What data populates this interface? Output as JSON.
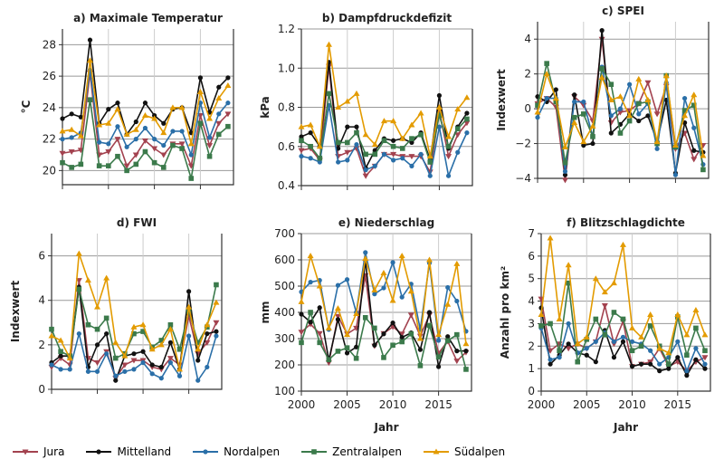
{
  "series_colors": {
    "Jura": "#a3424f",
    "Mittelland": "#111111",
    "Nordalpen": "#2a6fa8",
    "Zentralalpen": "#3b7a4b",
    "Südalpen": "#e39b00"
  },
  "legend": [
    "Jura",
    "Mittelland",
    "Nordalpen",
    "Zentralalpen",
    "Südalpen"
  ],
  "chart_data": [
    {
      "type": "line",
      "title": "a) Maximale Temperatur",
      "ylabel": "°C",
      "xlabel": "",
      "ylim": [
        19.1,
        29
      ],
      "yticks": [
        "20",
        "22",
        "24",
        "26",
        "28"
      ],
      "xticks": [],
      "x": [
        2000,
        2001,
        2002,
        2003,
        2004,
        2005,
        2006,
        2007,
        2008,
        2009,
        2010,
        2011,
        2012,
        2013,
        2014,
        2015,
        2016,
        2017,
        2018
      ],
      "series": [
        {
          "name": "Jura",
          "values": [
            21.1,
            21.2,
            21.3,
            26.2,
            21.0,
            21.2,
            22.0,
            20.3,
            21.0,
            21.9,
            21.4,
            21.0,
            21.7,
            21.7,
            20.3,
            23.5,
            21.6,
            23.0,
            23.6
          ]
        },
        {
          "name": "Mittelland",
          "values": [
            23.3,
            23.6,
            23.4,
            28.3,
            23.0,
            23.9,
            24.3,
            22.3,
            23.1,
            24.3,
            23.5,
            23.0,
            23.9,
            24.0,
            22.4,
            25.9,
            23.7,
            25.3,
            25.9
          ]
        },
        {
          "name": "Nordalpen",
          "values": [
            22.0,
            22.1,
            22.4,
            26.4,
            21.8,
            21.7,
            22.8,
            21.5,
            22.0,
            22.7,
            22.0,
            21.6,
            22.5,
            22.5,
            21.0,
            24.3,
            22.1,
            23.6,
            24.3
          ]
        },
        {
          "name": "Zentralalpen",
          "values": [
            20.5,
            20.2,
            20.4,
            24.5,
            20.3,
            20.3,
            20.9,
            20.0,
            20.4,
            21.2,
            20.5,
            20.2,
            21.6,
            21.4,
            19.5,
            23.0,
            20.9,
            22.3,
            22.8
          ]
        },
        {
          "name": "Südalpen",
          "values": [
            22.5,
            22.6,
            22.2,
            27.0,
            22.9,
            23.0,
            23.9,
            22.3,
            22.6,
            23.5,
            23.3,
            22.4,
            24.0,
            24.0,
            21.7,
            25.0,
            23.3,
            24.6,
            25.4
          ]
        }
      ]
    },
    {
      "type": "line",
      "title": "b) Dampfdruckdefizit",
      "ylabel": "kPa",
      "xlabel": "",
      "ylim": [
        0.4,
        1.2
      ],
      "yticks": [
        "0.4",
        "0.6",
        "0.8",
        "1.0",
        "1.2"
      ],
      "xticks": [],
      "x": [
        2000,
        2001,
        2002,
        2003,
        2004,
        2005,
        2006,
        2007,
        2008,
        2009,
        2010,
        2011,
        2012,
        2013,
        2014,
        2015,
        2016,
        2017,
        2018
      ],
      "series": [
        {
          "name": "Jura",
          "values": [
            0.58,
            0.59,
            0.53,
            1.01,
            0.55,
            0.57,
            0.59,
            0.45,
            0.5,
            0.56,
            0.56,
            0.55,
            0.55,
            0.55,
            0.47,
            0.78,
            0.55,
            0.66,
            0.72
          ]
        },
        {
          "name": "Mittelland",
          "values": [
            0.65,
            0.67,
            0.6,
            1.03,
            0.59,
            0.7,
            0.7,
            0.49,
            0.58,
            0.64,
            0.63,
            0.64,
            0.62,
            0.67,
            0.53,
            0.86,
            0.59,
            0.7,
            0.77
          ]
        },
        {
          "name": "Nordalpen",
          "values": [
            0.55,
            0.54,
            0.52,
            0.81,
            0.52,
            0.53,
            0.61,
            0.48,
            0.5,
            0.56,
            0.53,
            0.54,
            0.5,
            0.56,
            0.45,
            0.7,
            0.45,
            0.57,
            0.67
          ]
        },
        {
          "name": "Zentralalpen",
          "values": [
            0.63,
            0.6,
            0.54,
            0.87,
            0.62,
            0.62,
            0.67,
            0.56,
            0.56,
            0.63,
            0.6,
            0.59,
            0.64,
            0.66,
            0.52,
            0.76,
            0.6,
            0.69,
            0.74
          ]
        },
        {
          "name": "Südalpen",
          "values": [
            0.7,
            0.71,
            0.6,
            1.12,
            0.8,
            0.83,
            0.87,
            0.66,
            0.61,
            0.73,
            0.73,
            0.64,
            0.71,
            0.77,
            0.55,
            0.8,
            0.65,
            0.79,
            0.85
          ]
        }
      ]
    },
    {
      "type": "line",
      "title": "c) SPEI",
      "ylabel": "Indexwert",
      "xlabel": "",
      "ylim": [
        -4,
        5
      ],
      "yticks": [
        "−4",
        "−2",
        "0",
        "2",
        "4"
      ],
      "xticks": [],
      "x": [
        2000,
        2001,
        2002,
        2003,
        2004,
        2005,
        2006,
        2007,
        2008,
        2009,
        2010,
        2011,
        2012,
        2013,
        2014,
        2015,
        2016,
        2017,
        2018
      ],
      "series": [
        {
          "name": "Jura",
          "values": [
            0.3,
            0.6,
            0.1,
            -4.1,
            0.7,
            0.2,
            -0.7,
            4.0,
            -0.8,
            -0.2,
            -0.1,
            0.3,
            1.5,
            -0.3,
            1.3,
            -2.3,
            -1.4,
            -2.9,
            -2.1
          ]
        },
        {
          "name": "Mittelland",
          "values": [
            0.7,
            0.4,
            1.1,
            -3.8,
            0.8,
            -2.1,
            -2.0,
            4.5,
            -1.4,
            -0.9,
            -0.3,
            -0.7,
            -0.4,
            -1.9,
            0.5,
            -3.7,
            -0.8,
            -2.4,
            -2.5
          ]
        },
        {
          "name": "Nordalpen",
          "values": [
            -0.5,
            0.6,
            0.6,
            -3.6,
            0.4,
            0.4,
            -1.6,
            2.4,
            -0.4,
            0.0,
            1.4,
            -0.3,
            0.3,
            -2.3,
            1.5,
            -3.8,
            0.6,
            -1.1,
            -3.2
          ]
        },
        {
          "name": "Zentralalpen",
          "values": [
            0.2,
            2.6,
            0.4,
            -3.1,
            -0.5,
            -0.3,
            -1.6,
            2.3,
            1.4,
            -1.4,
            -0.7,
            0.3,
            0.4,
            -2.0,
            1.9,
            -2.2,
            -0.1,
            0.2,
            -3.5
          ]
        },
        {
          "name": "Südalpen",
          "values": [
            -0.2,
            2.0,
            0.6,
            -2.2,
            -0.8,
            -1.9,
            -1.0,
            1.8,
            0.5,
            0.7,
            -0.4,
            1.7,
            0.5,
            -1.9,
            1.9,
            -2.1,
            -0.4,
            0.8,
            -2.7
          ]
        }
      ]
    },
    {
      "type": "line",
      "title": "d) FWI",
      "ylabel": "Indexwert",
      "xlabel": "",
      "ylim": [
        0,
        7
      ],
      "yticks": [
        "0",
        "2",
        "4",
        "6"
      ],
      "xticks": [],
      "x": [
        2000,
        2001,
        2002,
        2003,
        2004,
        2005,
        2006,
        2007,
        2008,
        2009,
        2010,
        2011,
        2012,
        2013,
        2014,
        2015,
        2016,
        2017,
        2018
      ],
      "series": [
        {
          "name": "Jura",
          "values": [
            1.0,
            1.4,
            1.1,
            4.9,
            1.4,
            1.2,
            1.7,
            0.5,
            1.1,
            1.3,
            1.3,
            1.0,
            0.9,
            1.4,
            1.1,
            3.3,
            1.6,
            2.1,
            3.0
          ]
        },
        {
          "name": "Mittelland",
          "values": [
            1.2,
            1.5,
            1.5,
            4.6,
            1.0,
            2.0,
            2.5,
            0.4,
            1.5,
            1.6,
            1.7,
            1.1,
            1.0,
            2.1,
            0.9,
            4.4,
            1.3,
            2.5,
            2.6
          ]
        },
        {
          "name": "Nordalpen",
          "values": [
            1.1,
            0.9,
            0.9,
            2.5,
            0.8,
            0.8,
            1.6,
            0.6,
            0.8,
            0.9,
            1.2,
            0.7,
            0.5,
            1.2,
            0.6,
            2.4,
            0.4,
            1.0,
            2.4
          ]
        },
        {
          "name": "Zentralalpen",
          "values": [
            2.7,
            1.7,
            1.5,
            4.5,
            2.9,
            2.7,
            3.2,
            1.4,
            1.6,
            2.5,
            2.6,
            1.9,
            2.2,
            2.9,
            1.8,
            3.5,
            2.1,
            2.8,
            4.7
          ]
        },
        {
          "name": "Südalpen",
          "values": [
            2.4,
            2.2,
            1.4,
            6.1,
            4.9,
            3.7,
            5.0,
            2.1,
            1.5,
            2.8,
            2.9,
            1.8,
            2.0,
            2.7,
            0.9,
            3.7,
            1.8,
            2.9,
            3.9
          ]
        }
      ]
    },
    {
      "type": "line",
      "title": "e) Niederschlag",
      "ylabel": "mm",
      "xlabel": "Jahr",
      "ylim": [
        100,
        700
      ],
      "yticks": [
        "100",
        "200",
        "300",
        "400",
        "500",
        "600",
        "700"
      ],
      "xticks": [
        "2000",
        "2005",
        "2010",
        "2015"
      ],
      "x": [
        2000,
        2001,
        2002,
        2003,
        2004,
        2005,
        2006,
        2007,
        2008,
        2009,
        2010,
        2011,
        2012,
        2013,
        2014,
        2015,
        2016,
        2017,
        2018
      ],
      "series": [
        {
          "name": "Jura",
          "values": [
            325,
            355,
            320,
            208,
            385,
            318,
            340,
            540,
            272,
            320,
            345,
            318,
            390,
            310,
            390,
            245,
            290,
            215,
            248
          ]
        },
        {
          "name": "Mittelland",
          "values": [
            393,
            363,
            418,
            218,
            373,
            245,
            268,
            598,
            275,
            318,
            360,
            305,
            322,
            258,
            400,
            193,
            308,
            253,
            253
          ]
        },
        {
          "name": "Nordalpen",
          "values": [
            478,
            515,
            522,
            335,
            503,
            525,
            400,
            628,
            470,
            493,
            590,
            458,
            508,
            335,
            588,
            293,
            495,
            443,
            328
          ]
        },
        {
          "name": "Zentralalpen",
          "values": [
            285,
            400,
            285,
            220,
            252,
            265,
            225,
            380,
            340,
            228,
            275,
            288,
            318,
            197,
            350,
            230,
            292,
            315,
            183
          ]
        },
        {
          "name": "Südalpen",
          "values": [
            440,
            615,
            500,
            340,
            415,
            315,
            395,
            605,
            485,
            550,
            445,
            615,
            480,
            300,
            600,
            315,
            430,
            585,
            280
          ]
        }
      ]
    },
    {
      "type": "line",
      "title": "f) Blitzschlagdichte",
      "ylabel": "Anzahl pro km²",
      "xlabel": "Jahr",
      "ylim": [
        0,
        7
      ],
      "yticks": [
        "0",
        "1",
        "2",
        "3",
        "4",
        "5",
        "6",
        "7"
      ],
      "xticks": [
        "2000",
        "2005",
        "2010",
        "2015"
      ],
      "x": [
        2000,
        2001,
        2002,
        2003,
        2004,
        2005,
        2006,
        2007,
        2008,
        2009,
        2010,
        2011,
        2012,
        2013,
        2014,
        2015,
        2016,
        2017,
        2018
      ],
      "series": [
        {
          "name": "Jura",
          "values": [
            4.1,
            1.8,
            2.1,
            1.9,
            2.1,
            1.9,
            2.2,
            3.8,
            2.1,
            3.1,
            1.1,
            1.2,
            1.3,
            1.9,
            1.1,
            1.3,
            0.9,
            1.3,
            1.5
          ]
        },
        {
          "name": "Mittelland",
          "values": [
            3.7,
            1.2,
            1.6,
            2.1,
            1.7,
            1.6,
            1.3,
            2.7,
            1.5,
            2.2,
            1.1,
            1.2,
            1.2,
            0.9,
            1.0,
            1.5,
            0.7,
            1.4,
            1.0
          ]
        },
        {
          "name": "Nordalpen",
          "values": [
            2.8,
            1.4,
            1.5,
            3.0,
            1.7,
            1.9,
            2.2,
            2.6,
            2.2,
            2.4,
            2.2,
            2.1,
            1.8,
            1.2,
            1.5,
            2.2,
            0.9,
            1.9,
            1.2
          ]
        },
        {
          "name": "Zentralalpen",
          "values": [
            2.9,
            3.0,
            1.8,
            4.8,
            1.3,
            2.3,
            3.2,
            2.5,
            3.5,
            3.2,
            1.8,
            2.0,
            2.9,
            2.0,
            1.2,
            3.3,
            1.6,
            2.8,
            1.8
          ]
        },
        {
          "name": "Südalpen",
          "values": [
            3.4,
            6.8,
            3.2,
            5.6,
            2.1,
            2.4,
            5.0,
            4.4,
            4.8,
            6.5,
            2.8,
            2.4,
            3.4,
            1.9,
            1.7,
            3.4,
            2.5,
            3.6,
            2.5
          ]
        }
      ]
    }
  ]
}
